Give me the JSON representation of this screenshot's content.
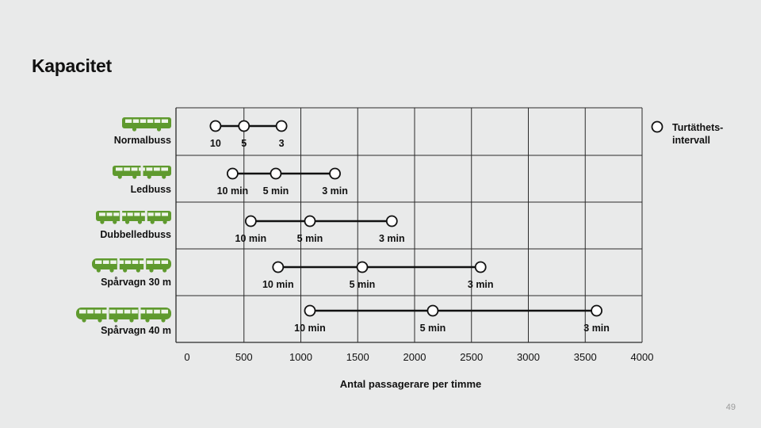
{
  "slide": {
    "title": "Kapacitet",
    "page_number": "49"
  },
  "colors": {
    "background": "#e9eaea",
    "grid": "#2a2a2a",
    "vehicle_green": "#5f9a2e",
    "line": "#111111"
  },
  "chart_data": {
    "type": "range-dot",
    "title": "",
    "xlabel": "Antal passagerare per timme",
    "xlim": [
      0,
      4000
    ],
    "xticks": [
      0,
      500,
      1000,
      1500,
      2000,
      2500,
      3000,
      3500,
      4000
    ],
    "grid": true,
    "legend": {
      "label": "Turtäthets-\nintervall",
      "position": "right"
    },
    "series": [
      {
        "name": "Normalbuss",
        "icon": "bus-icon",
        "points": [
          {
            "x": 250,
            "label": "10"
          },
          {
            "x": 500,
            "label": "5"
          },
          {
            "x": 830,
            "label": "3"
          }
        ]
      },
      {
        "name": "Ledbuss",
        "icon": "articulated-bus-icon",
        "points": [
          {
            "x": 400,
            "label": "10 min"
          },
          {
            "x": 780,
            "label": "5 min"
          },
          {
            "x": 1300,
            "label": "3 min"
          }
        ]
      },
      {
        "name": "Dubbelledbuss",
        "icon": "double-articulated-bus-icon",
        "points": [
          {
            "x": 560,
            "label": "10 min"
          },
          {
            "x": 1080,
            "label": "5 min"
          },
          {
            "x": 1800,
            "label": "3 min"
          }
        ]
      },
      {
        "name": "Spårvagn 30 m",
        "icon": "tram-30m-icon",
        "points": [
          {
            "x": 800,
            "label": "10 min"
          },
          {
            "x": 1540,
            "label": "5 min"
          },
          {
            "x": 2580,
            "label": "3 min"
          }
        ]
      },
      {
        "name": "Spårvagn 40 m",
        "icon": "tram-40m-icon",
        "points": [
          {
            "x": 1080,
            "label": "10 min"
          },
          {
            "x": 2160,
            "label": "5 min"
          },
          {
            "x": 3600,
            "label": "3 min"
          }
        ]
      }
    ]
  }
}
